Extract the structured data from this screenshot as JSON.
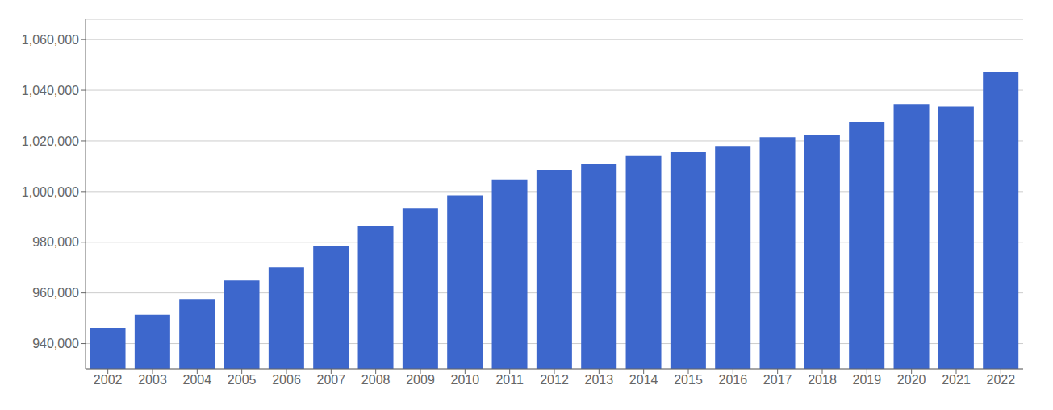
{
  "chart_data": {
    "type": "bar",
    "categories": [
      "2002",
      "2003",
      "2004",
      "2005",
      "2006",
      "2007",
      "2008",
      "2009",
      "2010",
      "2011",
      "2012",
      "2013",
      "2014",
      "2015",
      "2016",
      "2017",
      "2018",
      "2019",
      "2020",
      "2021",
      "2022"
    ],
    "values": [
      946200,
      951400,
      957600,
      964900,
      970000,
      978500,
      986500,
      993500,
      998500,
      1004800,
      1008500,
      1011000,
      1014000,
      1015500,
      1018000,
      1021500,
      1022500,
      1027500,
      1034500,
      1033500,
      1047000
    ],
    "color": "#3d67cc",
    "ylim": [
      930000,
      1068000
    ],
    "yticks": [
      {
        "value": 940000,
        "label": "940,000"
      },
      {
        "value": 960000,
        "label": "960,000"
      },
      {
        "value": 980000,
        "label": "980,000"
      },
      {
        "value": 1000000,
        "label": "1,000,000"
      },
      {
        "value": 1020000,
        "label": "1,020,000"
      },
      {
        "value": 1040000,
        "label": "1,040,000"
      },
      {
        "value": 1060000,
        "label": "1,060,000"
      }
    ],
    "grid": true
  }
}
